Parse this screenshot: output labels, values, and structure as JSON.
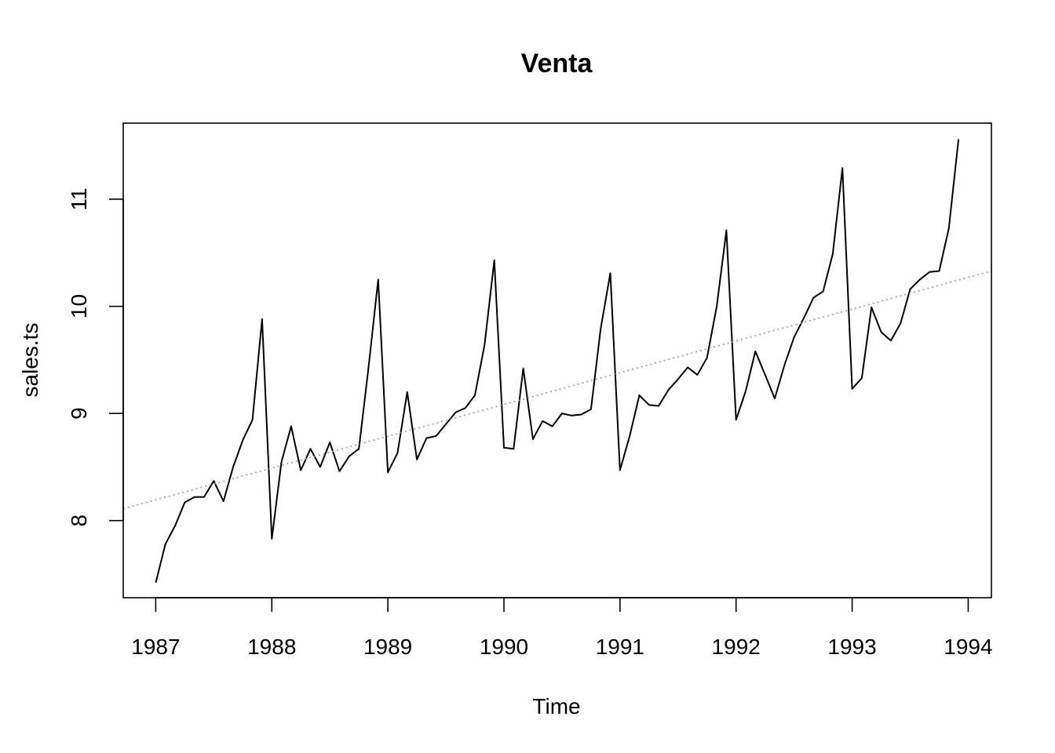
{
  "chart_data": {
    "type": "line",
    "title": "Venta",
    "xlabel": "Time",
    "ylabel": "sales.ts",
    "xlim": [
      1986.72,
      1994.2
    ],
    "ylim": [
      7.28,
      11.71
    ],
    "x_ticks": [
      "1987",
      "1988",
      "1989",
      "1990",
      "1991",
      "1992",
      "1993",
      "1994"
    ],
    "y_ticks": [
      "8",
      "9",
      "10",
      "11"
    ],
    "grid": false,
    "legend": "none",
    "series": [
      {
        "frequency": 12,
        "start": 1987,
        "color": "#000000",
        "values": [
          7.42,
          7.78,
          7.95,
          8.17,
          8.22,
          8.22,
          8.37,
          8.18,
          8.5,
          8.75,
          8.94,
          9.88,
          7.83,
          8.55,
          8.88,
          8.47,
          8.67,
          8.5,
          8.73,
          8.46,
          8.6,
          8.67,
          9.43,
          10.25,
          8.45,
          8.63,
          9.2,
          8.57,
          8.77,
          8.79,
          8.9,
          9.01,
          9.05,
          9.17,
          9.64,
          10.43,
          8.68,
          8.67,
          9.42,
          8.76,
          8.93,
          8.88,
          9.0,
          8.98,
          8.99,
          9.04,
          9.79,
          10.31,
          8.47,
          8.79,
          9.17,
          9.08,
          9.07,
          9.22,
          9.32,
          9.43,
          9.36,
          9.52,
          10.0,
          10.71,
          8.94,
          9.21,
          9.58,
          9.36,
          9.14,
          9.45,
          9.71,
          9.89,
          10.08,
          10.14,
          10.49,
          11.29,
          9.23,
          9.33,
          9.99,
          9.76,
          9.68,
          9.84,
          10.16,
          10.25,
          10.32,
          10.33,
          10.73,
          11.56
        ]
      },
      {
        "line_style": "dotted",
        "color": "#999999",
        "x": [
          1986.72,
          1994.2
        ],
        "values": [
          8.11,
          10.33
        ]
      }
    ]
  }
}
